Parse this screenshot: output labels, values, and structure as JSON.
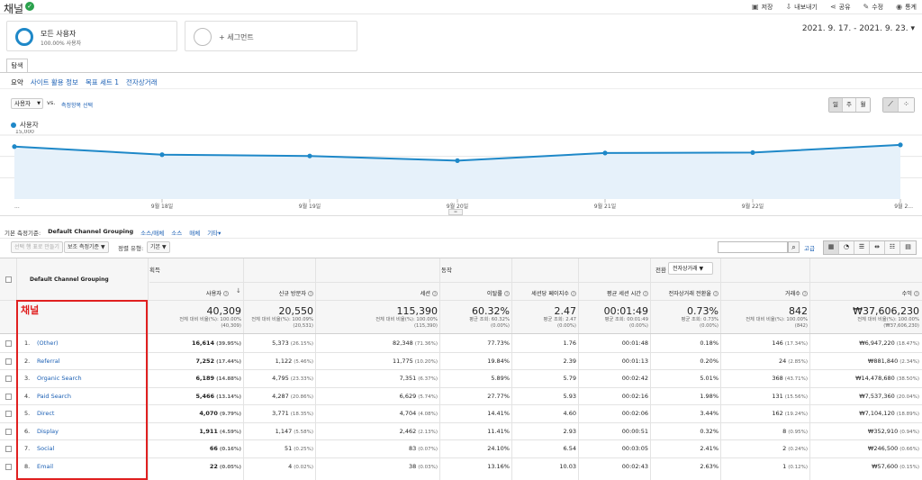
{
  "header": {
    "title": "채널",
    "actions": [
      {
        "icon": "save-icon",
        "label": "저장"
      },
      {
        "icon": "export-icon",
        "label": "내보내기"
      },
      {
        "icon": "share-icon",
        "label": "공유"
      },
      {
        "icon": "edit-icon",
        "label": "수정"
      },
      {
        "icon": "insights-icon",
        "label": "통계"
      }
    ]
  },
  "segments": {
    "active": {
      "name": "모든 사용자",
      "sub": "100.00% 사용자"
    },
    "add": "+ 세그먼트"
  },
  "date_range": "2021. 9. 17. - 2021. 9. 23.",
  "tabs": {
    "main": "탐색"
  },
  "subtabs": [
    "요약",
    "사이트 활용 정보",
    "목표 세트 1",
    "전자상거래"
  ],
  "graph_controls": {
    "metric": "사용자",
    "vs": "vs.",
    "select_metric": "측정항목 선택",
    "periods": [
      "일",
      "주",
      "월"
    ],
    "legend": "사용자"
  },
  "chart_data": {
    "type": "area",
    "series": [
      {
        "name": "사용자",
        "values": [
          12300,
          10400,
          10100,
          9000,
          10800,
          10900,
          12700
        ]
      }
    ],
    "x_labels": [
      "9월 18일",
      "9월 19일",
      "9월 20일",
      "9월 21일",
      "9월 22일",
      "9월 2..."
    ],
    "y_ticks": [
      "15,000",
      "10,000",
      "5,000"
    ],
    "ylim": [
      0,
      15000
    ],
    "first_tick": "...",
    "color": "#1e88c8"
  },
  "dimension_bar": {
    "label": "기본 측정기준:",
    "active": "Default Channel Grouping",
    "links": [
      "소스/매체",
      "소스",
      "매체",
      "기타"
    ]
  },
  "toolbar": {
    "plot_rows": "선택 행 표로 만들기",
    "secondary": "보조 측정기준",
    "sort_label": "정렬 유형:",
    "sort_value": "기본",
    "advanced": "고급"
  },
  "table": {
    "dimension_header": "Default Channel Grouping",
    "groups": {
      "acquisition": "획득",
      "behavior": "동작",
      "conversion": "전환",
      "conversion_select": "전자상거래"
    },
    "headers": [
      "사용자",
      "신규 방문자",
      "세션",
      "이탈률",
      "세션당 페이지수",
      "평균 세션 시간",
      "전자상거래 전환율",
      "거래수",
      "수익"
    ],
    "totals": [
      {
        "value": "40,309",
        "l1": "전체 대비 비율(%): 100.00%",
        "l2": "(40,309)"
      },
      {
        "value": "20,550",
        "l1": "전체 대비 비율(%): 100.09%",
        "l2": "(20,531)"
      },
      {
        "value": "115,390",
        "l1": "전체 대비 비율(%): 100.00%",
        "l2": "(115,390)"
      },
      {
        "value": "60.32%",
        "l1": "평균 조회: 60.32%",
        "l2": "(0.00%)"
      },
      {
        "value": "2.47",
        "l1": "평균 조회: 2.47",
        "l2": "(0.00%)"
      },
      {
        "value": "00:01:49",
        "l1": "평균 조회: 00:01:49",
        "l2": "(0.00%)"
      },
      {
        "value": "0.73%",
        "l1": "평균 조회: 0.73%",
        "l2": "(0.00%)"
      },
      {
        "value": "842",
        "l1": "전체 대비 비율(%): 100.00%",
        "l2": "(842)"
      },
      {
        "value": "₩37,606,230",
        "l1": "전체 대비 비율(%): 100.00%",
        "l2": "(₩37,606,230)"
      }
    ],
    "highlight_label": "채널",
    "rows": [
      {
        "rank": "1.",
        "name": "(Other)",
        "cells": [
          [
            "16,614",
            "(39.95%)"
          ],
          [
            "5,373",
            "(26.15%)"
          ],
          [
            "82,348",
            "(71.36%)"
          ],
          [
            "77.73%",
            ""
          ],
          [
            "1.76",
            ""
          ],
          [
            "00:01:48",
            ""
          ],
          [
            "0.18%",
            ""
          ],
          [
            "146",
            "(17.34%)"
          ],
          [
            "₩6,947,220",
            "(18.47%)"
          ]
        ]
      },
      {
        "rank": "2.",
        "name": "Referral",
        "cells": [
          [
            "7,252",
            "(17.44%)"
          ],
          [
            "1,122",
            "(5.46%)"
          ],
          [
            "11,775",
            "(10.20%)"
          ],
          [
            "19.84%",
            ""
          ],
          [
            "2.39",
            ""
          ],
          [
            "00:01:13",
            ""
          ],
          [
            "0.20%",
            ""
          ],
          [
            "24",
            "(2.85%)"
          ],
          [
            "₩881,840",
            "(2.34%)"
          ]
        ]
      },
      {
        "rank": "3.",
        "name": "Organic Search",
        "cells": [
          [
            "6,189",
            "(14.88%)"
          ],
          [
            "4,795",
            "(23.33%)"
          ],
          [
            "7,351",
            "(6.37%)"
          ],
          [
            "5.89%",
            ""
          ],
          [
            "5.79",
            ""
          ],
          [
            "00:02:42",
            ""
          ],
          [
            "5.01%",
            ""
          ],
          [
            "368",
            "(43.71%)"
          ],
          [
            "₩14,478,680",
            "(38.50%)"
          ]
        ]
      },
      {
        "rank": "4.",
        "name": "Paid Search",
        "cells": [
          [
            "5,466",
            "(13.14%)"
          ],
          [
            "4,287",
            "(20.86%)"
          ],
          [
            "6,629",
            "(5.74%)"
          ],
          [
            "27.77%",
            ""
          ],
          [
            "5.93",
            ""
          ],
          [
            "00:02:16",
            ""
          ],
          [
            "1.98%",
            ""
          ],
          [
            "131",
            "(15.56%)"
          ],
          [
            "₩7,537,360",
            "(20.04%)"
          ]
        ]
      },
      {
        "rank": "5.",
        "name": "Direct",
        "cells": [
          [
            "4,070",
            "(9.79%)"
          ],
          [
            "3,771",
            "(18.35%)"
          ],
          [
            "4,704",
            "(4.08%)"
          ],
          [
            "14.41%",
            ""
          ],
          [
            "4.60",
            ""
          ],
          [
            "00:02:06",
            ""
          ],
          [
            "3.44%",
            ""
          ],
          [
            "162",
            "(19.24%)"
          ],
          [
            "₩7,104,120",
            "(18.89%)"
          ]
        ]
      },
      {
        "rank": "6.",
        "name": "Display",
        "cells": [
          [
            "1,911",
            "(4.59%)"
          ],
          [
            "1,147",
            "(5.58%)"
          ],
          [
            "2,462",
            "(2.13%)"
          ],
          [
            "11.41%",
            ""
          ],
          [
            "2.93",
            ""
          ],
          [
            "00:00:51",
            ""
          ],
          [
            "0.32%",
            ""
          ],
          [
            "8",
            "(0.95%)"
          ],
          [
            "₩352,910",
            "(0.94%)"
          ]
        ]
      },
      {
        "rank": "7.",
        "name": "Social",
        "cells": [
          [
            "66",
            "(0.16%)"
          ],
          [
            "51",
            "(0.25%)"
          ],
          [
            "83",
            "(0.07%)"
          ],
          [
            "24.10%",
            ""
          ],
          [
            "6.54",
            ""
          ],
          [
            "00:03:05",
            ""
          ],
          [
            "2.41%",
            ""
          ],
          [
            "2",
            "(0.24%)"
          ],
          [
            "₩246,500",
            "(0.66%)"
          ]
        ]
      },
      {
        "rank": "8.",
        "name": "Email",
        "cells": [
          [
            "22",
            "(0.05%)"
          ],
          [
            "4",
            "(0.02%)"
          ],
          [
            "38",
            "(0.03%)"
          ],
          [
            "13.16%",
            ""
          ],
          [
            "10.03",
            ""
          ],
          [
            "00:02:43",
            ""
          ],
          [
            "2.63%",
            ""
          ],
          [
            "1",
            "(0.12%)"
          ],
          [
            "₩57,600",
            "(0.15%)"
          ]
        ]
      }
    ]
  }
}
